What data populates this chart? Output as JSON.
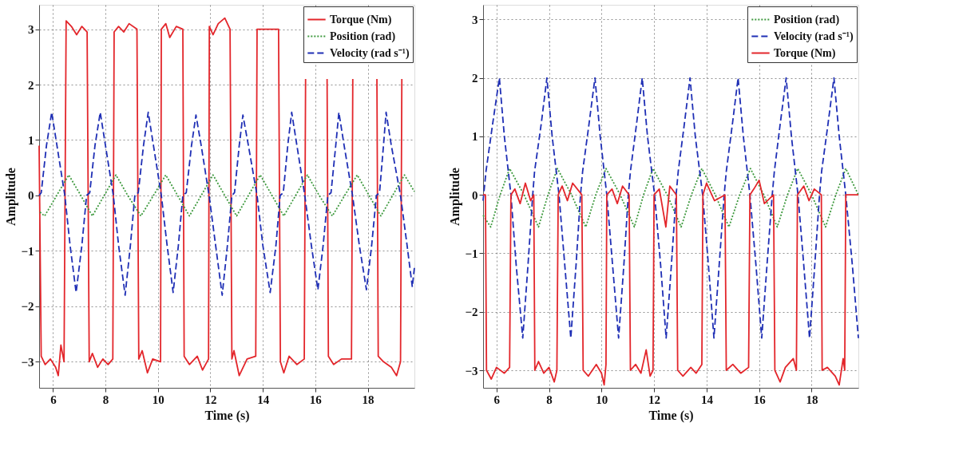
{
  "chart_data": [
    {
      "type": "line",
      "xlabel": "Time (s)",
      "ylabel": "Amplitude",
      "xlim": [
        5.47,
        19.78
      ],
      "ylim": [
        -3.47,
        3.44
      ],
      "xticks": [
        6,
        8,
        10,
        12,
        14,
        16,
        18
      ],
      "yticks": [
        -3,
        -2,
        -1,
        0,
        1,
        2,
        3
      ],
      "grid": true,
      "legend": "top right",
      "series": [
        {
          "name": "Torque (Nm)",
          "color": "#e3262b",
          "line_style": "solid",
          "x": [
            5.47,
            5.55,
            5.7,
            5.9,
            6.1,
            6.2,
            6.3,
            6.42,
            6.5,
            6.7,
            6.9,
            7.1,
            7.3,
            7.38,
            7.5,
            7.7,
            7.9,
            8.1,
            8.28,
            8.33,
            8.5,
            8.7,
            8.9,
            9.2,
            9.27,
            9.4,
            9.6,
            9.8,
            10.1,
            10.13,
            10.3,
            10.45,
            10.7,
            10.95,
            11.0,
            11.2,
            11.5,
            11.7,
            11.93,
            11.96,
            12.1,
            12.3,
            12.55,
            12.75,
            12.82,
            12.9,
            13.1,
            13.4,
            13.73,
            13.78,
            14.6,
            14.67,
            14.8,
            15.0,
            15.3,
            15.58,
            15.63,
            15.9,
            16.45,
            16.5,
            16.7,
            17.0,
            17.38,
            17.43,
            17.9,
            18.35,
            18.4,
            18.6,
            18.9,
            19.1,
            19.25,
            19.3
          ],
          "values": [
            0.9,
            -2.9,
            -3.05,
            -2.95,
            -3.1,
            -3.25,
            -2.7,
            -3.0,
            3.15,
            3.05,
            2.9,
            3.05,
            2.95,
            -3.0,
            -2.85,
            -3.1,
            -2.95,
            -3.05,
            -2.95,
            2.95,
            3.05,
            2.95,
            3.1,
            3.0,
            -2.95,
            -2.8,
            -3.2,
            -2.95,
            -3.0,
            3.0,
            3.1,
            2.85,
            3.05,
            3.0,
            -2.9,
            -3.05,
            -2.9,
            -3.15,
            -2.95,
            3.05,
            2.9,
            3.1,
            3.2,
            3.0,
            -2.95,
            -2.8,
            -3.25,
            -2.95,
            -2.9,
            3.0,
            3.0,
            -3.0,
            -3.2,
            -2.9,
            -3.05,
            -2.95,
            2.1,
            null,
            2.1,
            -2.9,
            -3.05,
            -2.95,
            -2.95,
            2.1,
            null,
            2.1,
            -2.9,
            -3.0,
            -3.1,
            -3.25,
            -3.0,
            2.1
          ]
        },
        {
          "name": "Position (rad)",
          "color": "#3f9a3f",
          "line_style": "dotted",
          "x": [
            5.5,
            5.68,
            6.14,
            6.6,
            7.06,
            7.5,
            7.95,
            8.4,
            8.85,
            9.35,
            9.83,
            10.3,
            10.75,
            11.2,
            11.65,
            12.1,
            12.55,
            13.0,
            13.45,
            13.9,
            14.35,
            14.8,
            15.25,
            15.7,
            16.15,
            16.65,
            17.12,
            17.6,
            18.05,
            18.5,
            18.95,
            19.4,
            19.78
          ],
          "values": [
            -0.3,
            -0.37,
            0,
            0.37,
            0,
            -0.37,
            0,
            0.37,
            0,
            -0.37,
            0,
            0.37,
            0,
            -0.37,
            0,
            0.37,
            0,
            -0.37,
            0,
            0.37,
            0,
            -0.37,
            0,
            0.37,
            0,
            -0.37,
            0,
            0.37,
            0,
            -0.37,
            0,
            0.37,
            0.07
          ]
        },
        {
          "name": "Velocity (rad s⁻¹)",
          "color": "#1f2fb5",
          "line_style": "dashed",
          "x": [
            5.47,
            5.55,
            5.75,
            5.95,
            6.15,
            6.45,
            6.65,
            6.88,
            7.1,
            7.28,
            7.4,
            7.6,
            7.8,
            8.0,
            8.3,
            8.5,
            8.75,
            8.95,
            9.12,
            9.25,
            9.45,
            9.63,
            9.83,
            10.13,
            10.35,
            10.58,
            10.78,
            10.95,
            11.08,
            11.28,
            11.45,
            11.65,
            11.95,
            12.2,
            12.45,
            12.65,
            12.82,
            12.92,
            13.1,
            13.24,
            13.45,
            13.78,
            14.0,
            14.28,
            14.5,
            14.66,
            14.78,
            14.95,
            15.1,
            15.3,
            15.6,
            15.85,
            16.1,
            16.3,
            16.48,
            16.6,
            16.78,
            16.9,
            17.1,
            17.42,
            17.68,
            17.95,
            18.15,
            18.33,
            18.45,
            18.6,
            18.7,
            18.9,
            19.25,
            19.5,
            19.7,
            19.78
          ],
          "values": [
            0.0,
            0.05,
            0.9,
            1.5,
            0.9,
            0.0,
            -0.9,
            -1.75,
            -0.9,
            0.0,
            0.05,
            0.9,
            1.5,
            0.9,
            0.0,
            -0.9,
            -1.8,
            -0.9,
            0.0,
            0.05,
            0.9,
            1.5,
            0.9,
            0.0,
            -0.9,
            -1.75,
            -0.9,
            0.0,
            0.05,
            0.9,
            1.45,
            0.9,
            0.0,
            -0.9,
            -1.8,
            -0.9,
            0.0,
            0.05,
            0.9,
            1.45,
            0.9,
            0.0,
            -0.9,
            -1.75,
            -0.9,
            0.0,
            0.05,
            0.9,
            1.5,
            0.9,
            0.0,
            -0.9,
            -1.7,
            -0.9,
            0.0,
            0.05,
            0.9,
            1.5,
            0.9,
            0.0,
            -0.9,
            -1.7,
            -0.9,
            0.0,
            0.05,
            0.9,
            1.5,
            0.9,
            0.0,
            -0.9,
            -1.65,
            -1.3
          ]
        }
      ]
    },
    {
      "type": "line",
      "xlabel": "Time (s)",
      "ylabel": "Amplitude",
      "xlim": [
        5.49,
        19.78
      ],
      "ylim": [
        -3.3,
        3.25
      ],
      "xticks": [
        6,
        8,
        10,
        12,
        14,
        16,
        18
      ],
      "yticks": [
        -3,
        -2,
        -1,
        0,
        1,
        2,
        3
      ],
      "grid": true,
      "legend": "top right",
      "series": [
        {
          "name": "Position (rad)",
          "color": "#3f9a3f",
          "line_style": "dotted",
          "x": [
            5.49,
            5.78,
            6.14,
            6.5,
            7.05,
            7.6,
            7.96,
            8.32,
            8.86,
            9.4,
            9.78,
            10.17,
            10.71,
            11.25,
            11.6,
            11.96,
            12.5,
            13.03,
            13.42,
            13.82,
            14.33,
            14.85,
            15.26,
            15.67,
            16.18,
            16.69,
            17.08,
            17.47,
            18.0,
            18.53,
            18.92,
            19.3,
            19.78
          ],
          "values": [
            -0.35,
            -0.55,
            0,
            0.45,
            0,
            -0.55,
            0,
            0.45,
            0,
            -0.55,
            0,
            0.45,
            0,
            -0.55,
            0,
            0.45,
            0,
            -0.55,
            0,
            0.45,
            0,
            -0.55,
            0,
            0.45,
            0,
            -0.55,
            0,
            0.45,
            0,
            -0.55,
            0,
            0.45,
            0
          ]
        },
        {
          "name": "Velocity (rad s⁻¹)",
          "color": "#1f2fb5",
          "line_style": "dashed",
          "x": [
            5.49,
            5.6,
            5.85,
            6.11,
            6.3,
            6.55,
            6.75,
            7.0,
            7.2,
            7.38,
            7.45,
            7.7,
            7.92,
            8.12,
            8.38,
            8.6,
            8.83,
            9.03,
            9.2,
            9.28,
            9.52,
            9.75,
            9.95,
            10.2,
            10.42,
            10.65,
            10.85,
            11.02,
            11.1,
            11.33,
            11.55,
            11.75,
            12.02,
            12.25,
            12.46,
            12.66,
            12.84,
            12.92,
            13.15,
            13.37,
            13.57,
            13.85,
            14.07,
            14.28,
            14.48,
            14.67,
            14.75,
            14.98,
            15.2,
            15.4,
            15.65,
            15.88,
            16.1,
            16.3,
            16.5,
            16.58,
            16.8,
            17.03,
            17.23,
            17.48,
            17.7,
            17.92,
            18.12,
            18.3,
            18.38,
            18.62,
            18.85,
            19.05,
            19.3,
            19.55,
            19.78
          ],
          "values": [
            -0.1,
            0.4,
            1.2,
            2.0,
            1.0,
            0.0,
            -1.2,
            -2.45,
            -1.2,
            0.0,
            0.4,
            1.2,
            2.0,
            1.0,
            0.0,
            -1.2,
            -2.45,
            -1.2,
            0.0,
            0.4,
            1.2,
            2.0,
            1.0,
            0.0,
            -1.2,
            -2.45,
            -1.2,
            0.0,
            0.4,
            1.2,
            2.0,
            1.0,
            0.0,
            -1.2,
            -2.45,
            -1.2,
            0.0,
            0.4,
            1.2,
            2.0,
            1.0,
            0.0,
            -1.2,
            -2.45,
            -1.2,
            0.0,
            0.4,
            1.2,
            2.0,
            1.0,
            0.0,
            -1.2,
            -2.45,
            -1.2,
            0.0,
            0.4,
            1.2,
            2.0,
            1.0,
            0.0,
            -1.2,
            -2.45,
            -1.2,
            0.0,
            0.4,
            1.2,
            2.0,
            1.0,
            0.0,
            -1.2,
            -2.45
          ]
        },
        {
          "name": "Torque (Nm)",
          "color": "#e3262b",
          "line_style": "solid",
          "x": [
            5.49,
            5.58,
            5.62,
            5.8,
            6.0,
            6.3,
            6.5,
            6.55,
            6.7,
            6.9,
            7.1,
            7.3,
            7.42,
            7.46,
            7.6,
            7.8,
            8.0,
            8.2,
            8.3,
            8.35,
            8.5,
            8.7,
            8.9,
            9.25,
            9.3,
            9.5,
            9.8,
            10.0,
            10.1,
            10.17,
            10.2,
            10.4,
            10.6,
            10.8,
            11.05,
            11.1,
            11.3,
            11.5,
            11.7,
            11.85,
            11.96,
            12.0,
            12.2,
            12.45,
            12.6,
            12.85,
            12.9,
            13.1,
            13.4,
            13.6,
            13.82,
            13.86,
            14.0,
            14.3,
            14.7,
            14.75,
            15.0,
            15.3,
            15.6,
            15.65,
            15.8,
            16.0,
            16.2,
            16.55,
            16.6,
            16.8,
            17.0,
            17.3,
            17.42,
            17.46,
            17.7,
            17.9,
            18.1,
            18.37,
            18.4,
            18.6,
            18.9,
            19.05,
            19.2,
            19.26,
            19.3,
            19.78
          ],
          "values": [
            0,
            0.0,
            -3.0,
            -3.15,
            -2.95,
            -3.05,
            -2.95,
            0.0,
            0.1,
            -0.15,
            0.2,
            -0.1,
            0.0,
            -3.0,
            -2.85,
            -3.05,
            -2.95,
            -3.2,
            -3.0,
            0.0,
            0.15,
            -0.1,
            0.2,
            0.0,
            -3.0,
            -3.1,
            -2.9,
            -3.05,
            -3.25,
            -2.9,
            0.0,
            0.1,
            -0.15,
            0.15,
            0.0,
            -3.0,
            -2.9,
            -3.05,
            -2.65,
            -3.1,
            -3.0,
            0.0,
            0.1,
            -0.55,
            0.15,
            0.0,
            -3.0,
            -3.1,
            -2.95,
            -3.05,
            -2.9,
            0.0,
            0.2,
            -0.1,
            0.0,
            -3.0,
            -2.9,
            -3.05,
            -2.95,
            0.0,
            0.1,
            0.25,
            -0.15,
            0.0,
            -3.0,
            -3.2,
            -2.95,
            -2.8,
            -3.0,
            0.0,
            0.15,
            -0.1,
            0.1,
            0.0,
            -3.0,
            -2.95,
            -3.1,
            -3.25,
            -2.8,
            -3.0,
            0.0,
            0.0
          ]
        }
      ]
    }
  ]
}
